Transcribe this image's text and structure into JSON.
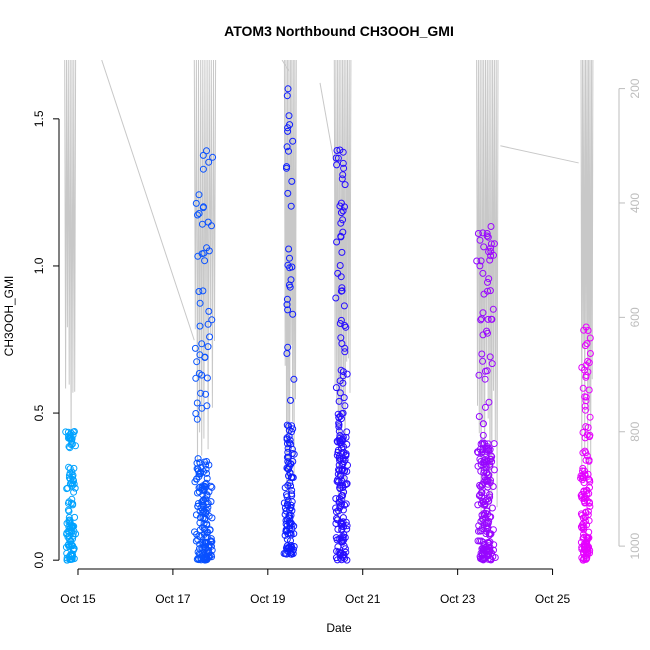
{
  "chart_data": {
    "type": "scatter",
    "title": "ATOM3 Northbound CH3OOH_GMI",
    "xlabel": "Date",
    "ylabel": "CH3OOH_GMI",
    "x_unit": "days (Oct 2017)",
    "xlim": [
      14.6,
      26.4
    ],
    "ylim": [
      -0.03,
      1.7
    ],
    "yticks": [
      0.0,
      0.5,
      1.0,
      1.5
    ],
    "ytick_labels": [
      "0.0",
      "0.5",
      "1.0",
      "1.5"
    ],
    "xticks": [
      15,
      17,
      19,
      21,
      23,
      25
    ],
    "xtick_labels": [
      "Oct 15",
      "Oct 17",
      "Oct 19",
      "Oct 21",
      "Oct 23",
      "Oct 25"
    ],
    "secondary_axis": {
      "side": "right",
      "reversed": true,
      "range": [
        150,
        1040
      ],
      "ticks": [
        200,
        400,
        600,
        800,
        1000
      ],
      "tick_labels": [
        "200",
        "400",
        "600",
        "800",
        "1000"
      ],
      "color": "#bdbdbd"
    },
    "grid": false,
    "legend": "none",
    "marker": "open-circle",
    "color_scale": {
      "start": "#00aaff",
      "end": "#ff00ff",
      "via": "#1010ff"
    },
    "flights": [
      {
        "center": 14.85,
        "spread": 0.12,
        "n": 110,
        "low": [
          0.0,
          0.32
        ],
        "high": [
          0.38,
          0.45
        ]
      },
      {
        "center": 17.65,
        "spread": 0.22,
        "n": 200,
        "low": [
          0.0,
          0.35
        ],
        "high": [
          0.4,
          1.41
        ]
      },
      {
        "center": 19.45,
        "spread": 0.12,
        "n": 140,
        "low": [
          0.02,
          0.48
        ],
        "high": [
          0.5,
          1.64
        ]
      },
      {
        "center": 20.55,
        "spread": 0.14,
        "n": 190,
        "low": [
          0.0,
          0.5
        ],
        "high": [
          0.5,
          1.43
        ]
      },
      {
        "center": 23.6,
        "spread": 0.22,
        "n": 220,
        "low": [
          0.0,
          0.4
        ],
        "high": [
          0.42,
          1.18
        ]
      },
      {
        "center": 25.7,
        "spread": 0.12,
        "n": 140,
        "low": [
          0.0,
          0.38
        ],
        "high": [
          0.4,
          0.82
        ]
      }
    ],
    "pressure_profile": {
      "color": "#c8c8c8",
      "segments": [
        {
          "x": [
            14.72,
            14.95
          ],
          "p": [
            150,
            830
          ],
          "n": 6
        },
        {
          "x": [
            17.45,
            17.9
          ],
          "p": [
            150,
            900
          ],
          "n": 10
        },
        {
          "x": [
            19.35,
            19.6
          ],
          "p": [
            150,
            980
          ],
          "n": 8
        },
        {
          "x": [
            20.4,
            20.75
          ],
          "p": [
            150,
            990
          ],
          "n": 10
        },
        {
          "x": [
            23.4,
            23.85
          ],
          "p": [
            150,
            990
          ],
          "n": 12
        },
        {
          "x": [
            25.6,
            25.85
          ],
          "p": [
            150,
            990
          ],
          "n": 8
        }
      ],
      "transits": [
        {
          "x": [
            15.5,
            17.45
          ],
          "p": [
            150,
            640
          ]
        },
        {
          "x": [
            19.3,
            19.45
          ],
          "p": [
            150,
            170
          ]
        },
        {
          "x": [
            20.1,
            20.4
          ],
          "p": [
            190,
            330
          ]
        },
        {
          "x": [
            23.9,
            25.55
          ],
          "p": [
            300,
            330
          ]
        }
      ]
    }
  }
}
